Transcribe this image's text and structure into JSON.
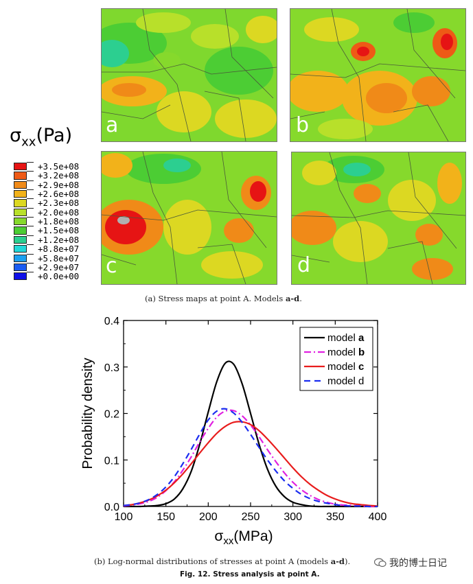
{
  "figure": {
    "panels": [
      {
        "letter": "a"
      },
      {
        "letter": "b"
      },
      {
        "letter": "c"
      },
      {
        "letter": "d"
      }
    ],
    "colorbar": {
      "title_symbol": "σ",
      "title_sub": "xx",
      "title_unit": "(Pa)",
      "levels": [
        {
          "label": "+3.5e+08",
          "color": "#e61414"
        },
        {
          "label": "+3.2e+08",
          "color": "#ee5a16"
        },
        {
          "label": "+2.9e+08",
          "color": "#f08a18"
        },
        {
          "label": "+2.6e+08",
          "color": "#f2b21a"
        },
        {
          "label": "+2.3e+08",
          "color": "#dcd822"
        },
        {
          "label": "+2.0e+08",
          "color": "#b8e02a"
        },
        {
          "label": "+1.8e+08",
          "color": "#86d92c"
        },
        {
          "label": "+1.5e+08",
          "color": "#4ccd34"
        },
        {
          "label": "+1.2e+08",
          "color": "#2ccf90"
        },
        {
          "label": "+8.8e+07",
          "color": "#22d8d8"
        },
        {
          "label": "+5.8e+07",
          "color": "#1ca0f0"
        },
        {
          "label": "+2.9e+07",
          "color": "#1a5cf2"
        },
        {
          "label": "+0.0e+00",
          "color": "#1010e8"
        }
      ]
    },
    "caption_a": {
      "prefix": "(a) Stress maps at point A. Models ",
      "bold": "a-d",
      "suffix": "."
    },
    "caption_b": {
      "prefix": "(b) Log-normal distributions of stresses at point A (models ",
      "bold": "a-d",
      "suffix": ")."
    },
    "fig_caption": "Fig. 12. Stress analysis at point A.",
    "watermark": "我的博士日记"
  },
  "chart_data": {
    "type": "line",
    "title": "",
    "xlabel_symbol": "σ",
    "xlabel_sub": "xx",
    "xlabel_unit": "(MPa)",
    "ylabel": "Probability density",
    "xlim": [
      100,
      400
    ],
    "ylim": [
      0,
      0.4
    ],
    "xticks": [
      100,
      150,
      200,
      250,
      300,
      350,
      400
    ],
    "yticks": [
      0.0,
      0.1,
      0.2,
      0.3,
      0.4
    ],
    "ytick_labels": [
      "0.0",
      "0.1",
      "0.2",
      "0.3",
      "0.4"
    ],
    "legend_position": "top-right",
    "x": [
      100,
      110,
      120,
      130,
      140,
      150,
      160,
      170,
      180,
      190,
      200,
      210,
      220,
      230,
      240,
      250,
      260,
      270,
      280,
      290,
      300,
      310,
      320,
      330,
      340,
      350,
      360,
      370,
      380,
      390,
      400
    ],
    "series": [
      {
        "name_prefix": "model ",
        "name_bold": "a",
        "color": "#000000",
        "dash": "",
        "values": [
          0.0,
          0.0,
          0.0,
          0.001,
          0.002,
          0.006,
          0.016,
          0.038,
          0.076,
          0.134,
          0.203,
          0.268,
          0.308,
          0.306,
          0.264,
          0.2,
          0.134,
          0.08,
          0.043,
          0.021,
          0.009,
          0.004,
          0.001,
          0.0,
          0.0,
          0.0,
          0.0,
          0.0,
          0.0,
          0.0,
          0.0
        ]
      },
      {
        "name_prefix": "model ",
        "name_bold": "b",
        "color": "#e020e0",
        "dash": "10,4,2,4",
        "values": [
          0.001,
          0.003,
          0.006,
          0.011,
          0.02,
          0.034,
          0.053,
          0.078,
          0.107,
          0.139,
          0.168,
          0.192,
          0.205,
          0.206,
          0.195,
          0.175,
          0.15,
          0.122,
          0.096,
          0.072,
          0.052,
          0.036,
          0.024,
          0.015,
          0.009,
          0.005,
          0.003,
          0.002,
          0.001,
          0.0,
          0.0
        ]
      },
      {
        "name_prefix": "model ",
        "name_bold": "c",
        "color": "#e81c1c",
        "dash": "",
        "values": [
          0.002,
          0.004,
          0.008,
          0.014,
          0.023,
          0.035,
          0.051,
          0.07,
          0.092,
          0.115,
          0.137,
          0.157,
          0.172,
          0.181,
          0.182,
          0.176,
          0.163,
          0.145,
          0.125,
          0.104,
          0.083,
          0.064,
          0.048,
          0.035,
          0.024,
          0.016,
          0.01,
          0.006,
          0.004,
          0.002,
          0.001
        ]
      },
      {
        "name_prefix": "model ",
        "name_bold": "d",
        "color": "#1a2cf0",
        "dash": "9,6",
        "values": [
          0.002,
          0.004,
          0.008,
          0.015,
          0.026,
          0.042,
          0.064,
          0.092,
          0.123,
          0.156,
          0.186,
          0.205,
          0.21,
          0.201,
          0.181,
          0.155,
          0.127,
          0.1,
          0.076,
          0.055,
          0.039,
          0.026,
          0.017,
          0.011,
          0.007,
          0.004,
          0.002,
          0.001,
          0.001,
          0.0,
          0.0
        ]
      }
    ]
  }
}
